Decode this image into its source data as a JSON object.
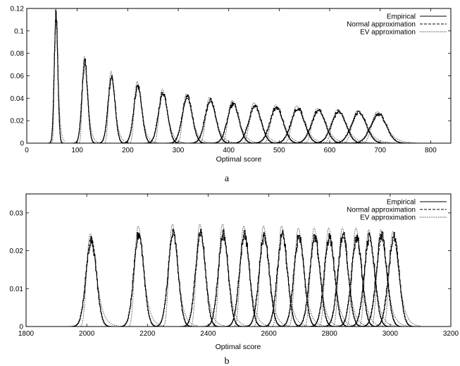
{
  "chart_data": [
    {
      "type": "line",
      "panel_label": "a",
      "xlabel": "Optimal score",
      "ylabel": "",
      "xlim": [
        0,
        840
      ],
      "ylim": [
        0,
        0.12
      ],
      "xticks": [
        0,
        100,
        200,
        300,
        400,
        500,
        600,
        700,
        800
      ],
      "yticks": [
        0,
        0.02,
        0.04,
        0.06,
        0.08,
        0.1,
        0.12
      ],
      "ytick_labels": [
        "0",
        "0.02",
        "0.04",
        "0.06",
        "0.08",
        "0.1",
        "0.12"
      ],
      "legend_position": "top-right",
      "series": [
        {
          "name": "Empirical",
          "style": "solid"
        },
        {
          "name": "Normal approximation",
          "style": "dashed"
        },
        {
          "name": "EV approximation",
          "style": "dotted"
        }
      ],
      "peaks": [
        {
          "x": 58,
          "empirical": 0.114,
          "normal": 0.113,
          "ev": 0.111
        },
        {
          "x": 115,
          "empirical": 0.072,
          "normal": 0.071,
          "ev": 0.077
        },
        {
          "x": 168,
          "empirical": 0.059,
          "normal": 0.058,
          "ev": 0.064
        },
        {
          "x": 220,
          "empirical": 0.051,
          "normal": 0.05,
          "ev": 0.055
        },
        {
          "x": 270,
          "empirical": 0.045,
          "normal": 0.044,
          "ev": 0.048
        },
        {
          "x": 318,
          "empirical": 0.041,
          "normal": 0.04,
          "ev": 0.044
        },
        {
          "x": 364,
          "empirical": 0.038,
          "normal": 0.037,
          "ev": 0.041
        },
        {
          "x": 409,
          "empirical": 0.035,
          "normal": 0.035,
          "ev": 0.038
        },
        {
          "x": 452,
          "empirical": 0.033,
          "normal": 0.033,
          "ev": 0.036
        },
        {
          "x": 495,
          "empirical": 0.032,
          "normal": 0.031,
          "ev": 0.034
        },
        {
          "x": 537,
          "empirical": 0.031,
          "normal": 0.03,
          "ev": 0.033
        },
        {
          "x": 578,
          "empirical": 0.029,
          "normal": 0.029,
          "ev": 0.031
        },
        {
          "x": 618,
          "empirical": 0.028,
          "normal": 0.028,
          "ev": 0.03
        },
        {
          "x": 658,
          "empirical": 0.027,
          "normal": 0.027,
          "ev": 0.029
        },
        {
          "x": 697,
          "empirical": 0.026,
          "normal": 0.026,
          "ev": 0.028
        }
      ]
    },
    {
      "type": "line",
      "panel_label": "b",
      "xlabel": "Optimal score",
      "ylabel": "",
      "xlim": [
        1800,
        3200
      ],
      "ylim": [
        0,
        0.035
      ],
      "xticks": [
        1800,
        2000,
        2200,
        2400,
        2600,
        2800,
        3000,
        3200
      ],
      "yticks": [
        0,
        0.01,
        0.02,
        0.03
      ],
      "ytick_labels": [
        "0",
        "0.01",
        "0.02",
        "0.03"
      ],
      "legend_position": "top-right",
      "series": [
        {
          "name": "Empirical",
          "style": "solid"
        },
        {
          "name": "Normal approximation",
          "style": "dashed"
        },
        {
          "name": "EV approximation",
          "style": "dotted"
        }
      ],
      "peaks": [
        {
          "x": 2015,
          "empirical": 0.023,
          "normal": 0.0235,
          "ev": 0.0245
        },
        {
          "x": 2172,
          "empirical": 0.0245,
          "normal": 0.0245,
          "ev": 0.0265
        },
        {
          "x": 2285,
          "empirical": 0.0245,
          "normal": 0.0245,
          "ev": 0.027
        },
        {
          "x": 2375,
          "empirical": 0.025,
          "normal": 0.025,
          "ev": 0.027
        },
        {
          "x": 2450,
          "empirical": 0.0245,
          "normal": 0.0245,
          "ev": 0.027
        },
        {
          "x": 2520,
          "empirical": 0.0245,
          "normal": 0.0245,
          "ev": 0.0265
        },
        {
          "x": 2585,
          "empirical": 0.024,
          "normal": 0.024,
          "ev": 0.0265
        },
        {
          "x": 2645,
          "empirical": 0.024,
          "normal": 0.024,
          "ev": 0.0265
        },
        {
          "x": 2700,
          "empirical": 0.024,
          "normal": 0.024,
          "ev": 0.026
        },
        {
          "x": 2752,
          "empirical": 0.0235,
          "normal": 0.0235,
          "ev": 0.026
        },
        {
          "x": 2800,
          "empirical": 0.0235,
          "normal": 0.0235,
          "ev": 0.026
        },
        {
          "x": 2845,
          "empirical": 0.024,
          "normal": 0.0235,
          "ev": 0.026
        },
        {
          "x": 2890,
          "empirical": 0.0235,
          "normal": 0.0235,
          "ev": 0.026
        },
        {
          "x": 2932,
          "empirical": 0.0235,
          "normal": 0.023,
          "ev": 0.0255
        },
        {
          "x": 2972,
          "empirical": 0.024,
          "normal": 0.023,
          "ev": 0.0255
        },
        {
          "x": 3012,
          "empirical": 0.0235,
          "normal": 0.023,
          "ev": 0.025
        }
      ]
    }
  ]
}
